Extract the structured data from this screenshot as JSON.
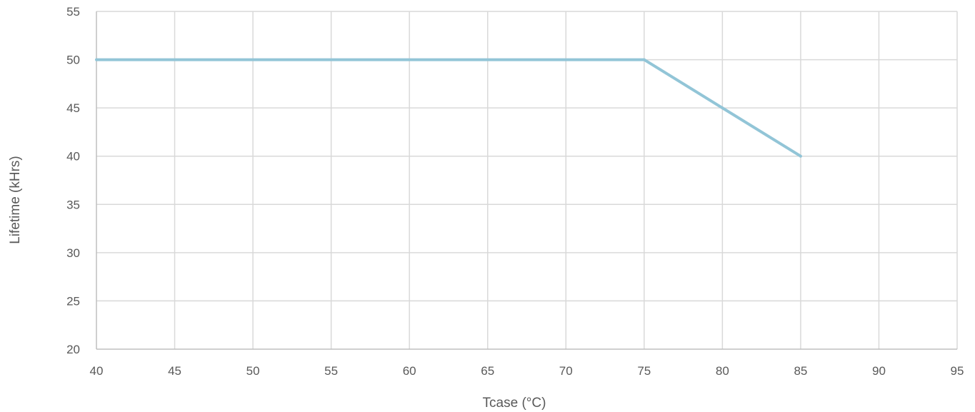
{
  "chart_data": {
    "type": "line",
    "title": "",
    "xlabel": "Tcase (°C)",
    "ylabel": "Lifetime (kHrs)",
    "xlim": [
      40,
      95
    ],
    "ylim": [
      20,
      55
    ],
    "x_ticks": [
      40,
      45,
      50,
      55,
      60,
      65,
      70,
      75,
      80,
      85,
      90,
      95
    ],
    "y_ticks": [
      20,
      25,
      30,
      35,
      40,
      45,
      50,
      55
    ],
    "grid": true,
    "legend": "none",
    "series": [
      {
        "color": "#92c5d7",
        "x": [
          40,
          75,
          80,
          85
        ],
        "y": [
          50,
          50,
          45,
          40
        ]
      }
    ]
  }
}
